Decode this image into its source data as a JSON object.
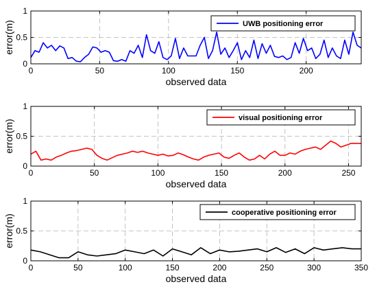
{
  "chart_data": [
    {
      "type": "line",
      "xlabel": "observed data",
      "ylabel": "error(m)",
      "xlim": [
        0,
        240
      ],
      "ylim": [
        0,
        1
      ],
      "xticks": [
        0,
        50,
        100,
        150,
        200
      ],
      "yticks": [
        0,
        0.5,
        1
      ],
      "xtick_labels": [
        "0",
        "50",
        "100",
        "150",
        "200"
      ],
      "ytick_labels": [
        "0",
        "0.5",
        "1"
      ],
      "grid": true,
      "legend_position": "top-right",
      "series": [
        {
          "name": "UWB positioning error",
          "color": "#0000ff",
          "x": [
            0,
            3,
            6,
            9,
            12,
            15,
            18,
            21,
            24,
            27,
            30,
            33,
            36,
            39,
            42,
            45,
            48,
            51,
            54,
            57,
            60,
            63,
            66,
            69,
            72,
            75,
            78,
            81,
            84,
            87,
            90,
            93,
            96,
            99,
            102,
            105,
            108,
            111,
            114,
            117,
            120,
            123,
            126,
            129,
            132,
            135,
            138,
            141,
            144,
            147,
            150,
            153,
            156,
            159,
            162,
            165,
            168,
            171,
            174,
            177,
            180,
            183,
            186,
            189,
            192,
            195,
            198,
            201,
            204,
            207,
            210,
            213,
            216,
            219,
            222,
            225,
            228,
            231,
            234,
            237,
            240
          ],
          "y": [
            0.12,
            0.25,
            0.22,
            0.4,
            0.3,
            0.35,
            0.25,
            0.34,
            0.3,
            0.1,
            0.12,
            0.05,
            0.04,
            0.12,
            0.18,
            0.32,
            0.3,
            0.22,
            0.25,
            0.22,
            0.06,
            0.05,
            0.08,
            0.05,
            0.25,
            0.2,
            0.35,
            0.12,
            0.55,
            0.25,
            0.2,
            0.42,
            0.12,
            0.08,
            0.15,
            0.48,
            0.1,
            0.3,
            0.15,
            0.15,
            0.15,
            0.35,
            0.5,
            0.1,
            0.25,
            0.6,
            0.18,
            0.3,
            0.12,
            0.25,
            0.4,
            0.08,
            0.25,
            0.12,
            0.45,
            0.1,
            0.38,
            0.2,
            0.35,
            0.14,
            0.12,
            0.15,
            0.08,
            0.12,
            0.4,
            0.2,
            0.48,
            0.25,
            0.3,
            0.1,
            0.18,
            0.45,
            0.12,
            0.3,
            0.15,
            0.1,
            0.45,
            0.18,
            0.6,
            0.35,
            0.3
          ]
        }
      ]
    },
    {
      "type": "line",
      "xlabel": "observed data",
      "ylabel": "error(m)",
      "xlim": [
        0,
        260
      ],
      "ylim": [
        0,
        1
      ],
      "xticks": [
        0,
        50,
        100,
        150,
        200,
        250
      ],
      "yticks": [
        0,
        0.5,
        1
      ],
      "xtick_labels": [
        "0",
        "50",
        "100",
        "150",
        "200",
        "250"
      ],
      "ytick_labels": [
        "0",
        "0.5",
        "1"
      ],
      "grid": true,
      "legend_position": "top-right",
      "series": [
        {
          "name": "visual positioning error",
          "color": "#ff0000",
          "x": [
            0,
            4,
            8,
            12,
            16,
            20,
            24,
            28,
            32,
            36,
            40,
            44,
            48,
            52,
            56,
            60,
            64,
            68,
            72,
            76,
            80,
            84,
            88,
            92,
            96,
            100,
            104,
            108,
            112,
            116,
            120,
            124,
            128,
            132,
            136,
            140,
            144,
            148,
            152,
            156,
            160,
            164,
            168,
            172,
            176,
            180,
            184,
            188,
            192,
            196,
            200,
            204,
            208,
            212,
            216,
            220,
            224,
            228,
            232,
            236,
            240,
            244,
            248,
            252,
            256,
            260
          ],
          "y": [
            0.2,
            0.25,
            0.1,
            0.12,
            0.1,
            0.15,
            0.18,
            0.22,
            0.25,
            0.26,
            0.28,
            0.3,
            0.28,
            0.18,
            0.13,
            0.1,
            0.14,
            0.18,
            0.2,
            0.22,
            0.25,
            0.23,
            0.25,
            0.22,
            0.2,
            0.18,
            0.2,
            0.17,
            0.18,
            0.22,
            0.19,
            0.15,
            0.12,
            0.1,
            0.15,
            0.18,
            0.2,
            0.22,
            0.15,
            0.13,
            0.18,
            0.22,
            0.15,
            0.1,
            0.12,
            0.18,
            0.12,
            0.2,
            0.25,
            0.18,
            0.18,
            0.22,
            0.2,
            0.25,
            0.28,
            0.3,
            0.32,
            0.28,
            0.35,
            0.42,
            0.38,
            0.32,
            0.35,
            0.38,
            0.38,
            0.38
          ]
        }
      ]
    },
    {
      "type": "line",
      "xlabel": "observed data",
      "ylabel": "error(m)",
      "xlim": [
        0,
        350
      ],
      "ylim": [
        0,
        1
      ],
      "xticks": [
        0,
        50,
        100,
        150,
        200,
        250,
        300,
        350
      ],
      "yticks": [
        0,
        0.5,
        1
      ],
      "xtick_labels": [
        "0",
        "50",
        "100",
        "150",
        "200",
        "250",
        "300",
        "350"
      ],
      "ytick_labels": [
        "0",
        "0.5",
        "1"
      ],
      "grid": true,
      "legend_position": "top-right",
      "series": [
        {
          "name": "cooperative positioning error",
          "color": "#000000",
          "x": [
            0,
            10,
            20,
            30,
            40,
            50,
            60,
            70,
            80,
            90,
            100,
            110,
            120,
            130,
            140,
            150,
            160,
            170,
            180,
            190,
            200,
            210,
            220,
            230,
            240,
            250,
            260,
            270,
            280,
            290,
            300,
            310,
            320,
            330,
            340,
            350
          ],
          "y": [
            0.18,
            0.15,
            0.1,
            0.05,
            0.05,
            0.15,
            0.1,
            0.08,
            0.1,
            0.12,
            0.18,
            0.15,
            0.12,
            0.18,
            0.08,
            0.2,
            0.15,
            0.1,
            0.22,
            0.12,
            0.18,
            0.15,
            0.16,
            0.18,
            0.2,
            0.15,
            0.22,
            0.14,
            0.2,
            0.12,
            0.22,
            0.18,
            0.2,
            0.22,
            0.2,
            0.2
          ]
        }
      ]
    }
  ]
}
